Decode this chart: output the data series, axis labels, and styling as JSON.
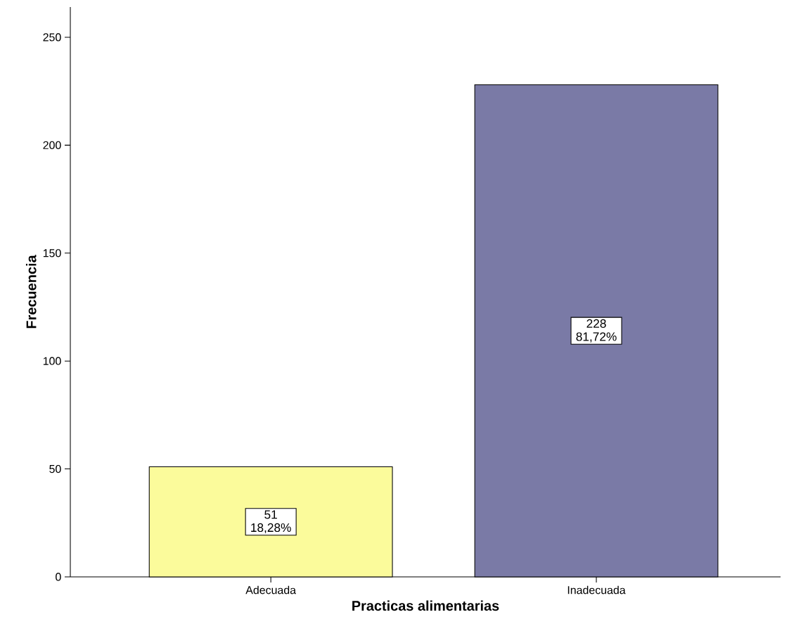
{
  "chart_data": {
    "type": "bar",
    "xlabel": "Practicas alimentarias",
    "ylabel": "Frecuencia",
    "categories": [
      "Adecuada",
      "Inadecuada"
    ],
    "values": [
      51,
      228
    ],
    "colors": [
      "#fbfb9b",
      "#7a7aa6"
    ],
    "value_labels": [
      "51 18,28%",
      "228 81,72%"
    ],
    "ylim": [
      0,
      264
    ],
    "yticks": [
      0,
      50,
      100,
      150,
      200,
      250
    ],
    "grid": false
  }
}
